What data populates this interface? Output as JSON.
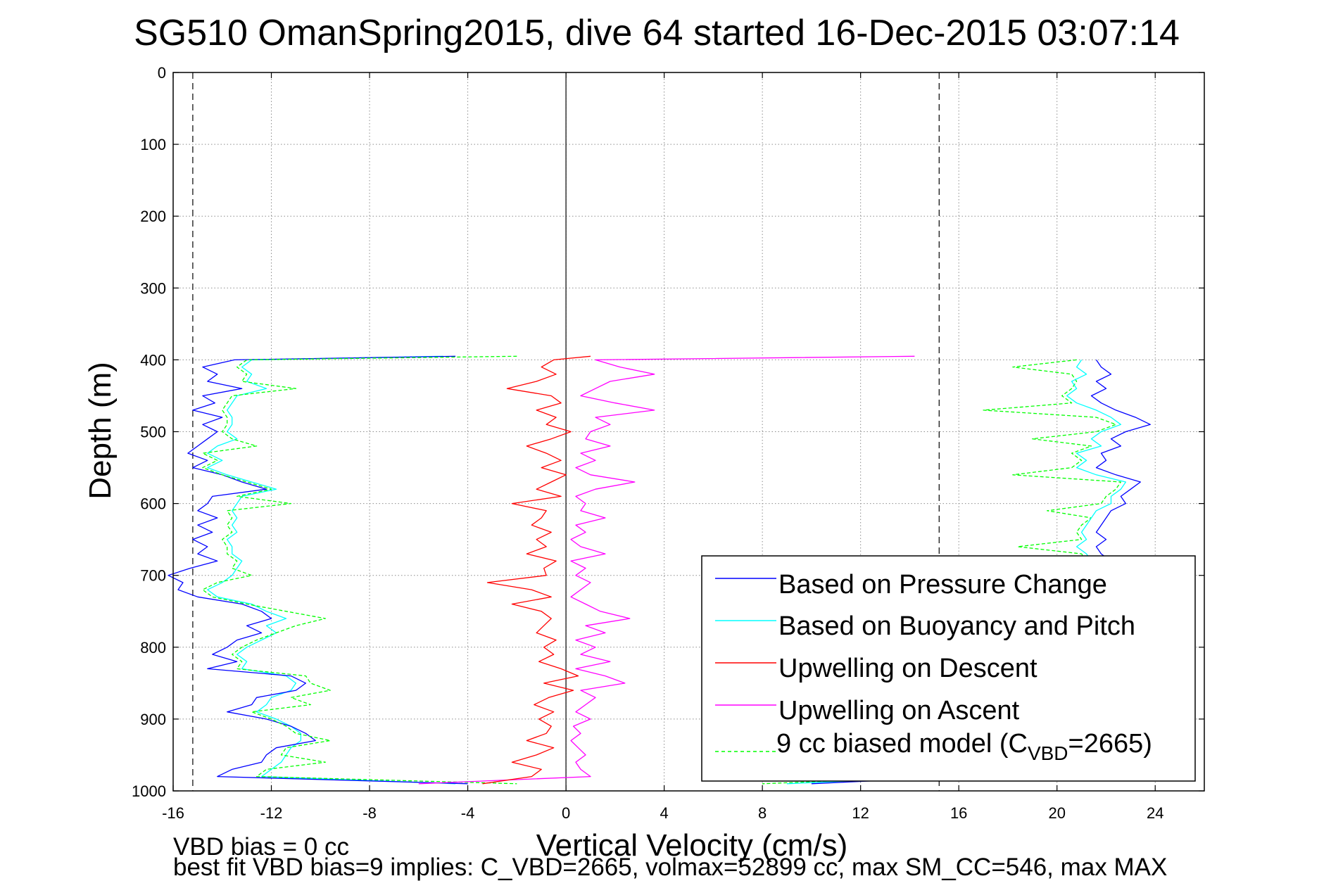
{
  "chart_data": {
    "type": "line",
    "title": "SG510 OmanSpring2015, dive 64 started 16-Dec-2015 03:07:14",
    "xlabel": "Vertical Velocity (cm/s)",
    "ylabel": "Depth (m)",
    "xlim": [
      -16,
      26
    ],
    "ylim": [
      1000,
      0
    ],
    "y_reversed": true,
    "grid": true,
    "x_ticks": [
      -16,
      -12,
      -8,
      -4,
      0,
      4,
      8,
      12,
      16,
      20,
      24
    ],
    "y_ticks": [
      0,
      100,
      200,
      300,
      400,
      500,
      600,
      700,
      800,
      900,
      1000
    ],
    "vertical_reference_lines": [
      {
        "x": -15.2,
        "style": "dashed"
      },
      {
        "x": 0,
        "style": "solid"
      },
      {
        "x": 15.2,
        "style": "dashed"
      }
    ],
    "legend": {
      "placement": "bottom-right",
      "entries": [
        {
          "name": "Based on Pressure Change",
          "color": "#0000ff",
          "style": "solid"
        },
        {
          "name": "Based on Buoyancy and Pitch",
          "color": "#00ffff",
          "style": "solid"
        },
        {
          "name": "Upwelling on Descent",
          "color": "#ff0000",
          "style": "solid"
        },
        {
          "name": "Upwelling on Ascent",
          "color": "#ff00ff",
          "style": "solid"
        },
        {
          "name_main": "9 cc biased model (C",
          "name_sub": "VBD",
          "name_end": "=2665)",
          "color": "#00ff00",
          "style": "dashed"
        }
      ]
    },
    "annotations": [
      "VBD bias = 0 cc",
      "best fit VBD bias=9 implies: C_VBD=2665, volmax=52899 cc, max SM_CC=546, max MAX"
    ],
    "series": [
      {
        "name": "Based on Pressure Change",
        "color": "#0000ff",
        "depth": [
          395,
          400,
          410,
          420,
          430,
          440,
          450,
          460,
          470,
          480,
          490,
          500,
          510,
          520,
          530,
          540,
          550,
          560,
          570,
          580,
          590,
          600,
          610,
          620,
          630,
          640,
          650,
          660,
          670,
          680,
          690,
          700,
          710,
          720,
          730,
          740,
          750,
          760,
          770,
          780,
          790,
          800,
          810,
          820,
          830,
          840,
          850,
          860,
          870,
          880,
          890,
          900,
          910,
          920,
          930,
          940,
          950,
          960,
          970,
          980,
          990
        ],
        "x": [
          -4.5,
          -13.5,
          -14.8,
          -14.2,
          -14.6,
          -13.2,
          -14.8,
          -14.3,
          -15.2,
          -14.0,
          -14.8,
          -14.2,
          -14.6,
          -15.0,
          -15.4,
          -14.6,
          -15.2,
          -14.0,
          -13.2,
          -12.2,
          -14.4,
          -14.6,
          -15.0,
          -14.2,
          -15.0,
          -14.4,
          -15.2,
          -14.6,
          -15.0,
          -14.2,
          -15.3,
          -16.2,
          -15.6,
          -15.8,
          -15.0,
          -13.2,
          -12.4,
          -12.0,
          -13.0,
          -12.4,
          -13.4,
          -13.8,
          -14.4,
          -13.4,
          -14.6,
          -11.2,
          -10.6,
          -11.0,
          -12.6,
          -12.8,
          -13.8,
          -12.2,
          -11.2,
          -10.6,
          -10.2,
          -11.8,
          -12.2,
          -12.4,
          -13.6,
          -14.2,
          -4.0
        ]
      },
      {
        "name": "Based on Buoyancy and Pitch",
        "color": "#00ffff",
        "depth": [
          395,
          400,
          410,
          420,
          430,
          440,
          450,
          460,
          470,
          480,
          490,
          500,
          510,
          520,
          530,
          540,
          550,
          560,
          570,
          580,
          590,
          600,
          610,
          620,
          630,
          640,
          650,
          660,
          670,
          680,
          690,
          700,
          710,
          720,
          730,
          740,
          750,
          760,
          770,
          780,
          790,
          800,
          810,
          820,
          830,
          840,
          850,
          860,
          870,
          880,
          890,
          900,
          910,
          920,
          930,
          940,
          950,
          960,
          970,
          980,
          990
        ],
        "x": [
          -5.0,
          -12.8,
          -13.2,
          -12.8,
          -13.0,
          -12.2,
          -13.4,
          -13.6,
          -13.8,
          -13.6,
          -13.6,
          -13.8,
          -13.4,
          -14.2,
          -14.6,
          -14.0,
          -14.6,
          -13.8,
          -12.8,
          -11.8,
          -13.2,
          -13.4,
          -13.6,
          -13.4,
          -13.6,
          -13.4,
          -13.8,
          -13.6,
          -13.6,
          -13.2,
          -13.4,
          -13.6,
          -14.0,
          -14.6,
          -14.2,
          -12.8,
          -12.2,
          -11.4,
          -12.2,
          -11.8,
          -12.4,
          -13.0,
          -13.4,
          -13.0,
          -13.2,
          -11.4,
          -11.0,
          -11.2,
          -12.0,
          -12.2,
          -12.6,
          -11.8,
          -11.2,
          -10.8,
          -10.8,
          -11.2,
          -11.4,
          -11.6,
          -12.0,
          -12.4,
          -4.5
        ]
      },
      {
        "name": "Upwelling on Descent",
        "color": "#ff0000",
        "depth": [
          395,
          400,
          410,
          420,
          430,
          440,
          450,
          460,
          470,
          480,
          490,
          500,
          510,
          520,
          530,
          540,
          550,
          560,
          570,
          580,
          590,
          600,
          610,
          620,
          630,
          640,
          650,
          660,
          670,
          680,
          690,
          700,
          710,
          720,
          730,
          740,
          750,
          760,
          770,
          780,
          790,
          800,
          810,
          820,
          830,
          840,
          850,
          860,
          870,
          880,
          890,
          900,
          910,
          920,
          930,
          940,
          950,
          960,
          970,
          980,
          990
        ],
        "x": [
          1.0,
          -0.5,
          -1.0,
          -0.4,
          -1.2,
          -2.4,
          -0.6,
          -0.2,
          -1.2,
          -0.4,
          -0.8,
          0.2,
          -0.6,
          -1.6,
          -0.8,
          -0.2,
          -1.0,
          0.0,
          -0.6,
          -1.2,
          -0.2,
          -2.2,
          -0.8,
          -1.0,
          -1.4,
          -0.6,
          -1.2,
          -0.8,
          -1.6,
          -0.4,
          -0.9,
          -0.8,
          -3.2,
          -1.4,
          -0.6,
          -2.2,
          -1.0,
          -0.6,
          -0.9,
          -1.2,
          -0.4,
          -0.9,
          -0.5,
          -1.1,
          -0.2,
          0.5,
          -0.9,
          0.3,
          -0.7,
          -1.3,
          -0.5,
          -1.1,
          -0.6,
          -0.8,
          -1.6,
          -0.5,
          -1.2,
          -2.2,
          -1.0,
          -1.4,
          -3.4
        ]
      },
      {
        "name": "Upwelling on Ascent",
        "color": "#ff00ff",
        "depth": [
          395,
          400,
          410,
          420,
          430,
          440,
          450,
          460,
          470,
          480,
          490,
          500,
          510,
          520,
          530,
          540,
          550,
          560,
          570,
          580,
          590,
          600,
          610,
          620,
          630,
          640,
          650,
          660,
          670,
          680,
          690,
          700,
          710,
          720,
          730,
          740,
          750,
          760,
          770,
          780,
          790,
          800,
          810,
          820,
          830,
          840,
          850,
          860,
          870,
          880,
          890,
          900,
          910,
          920,
          930,
          940,
          950,
          960,
          970,
          980,
          990
        ],
        "x": [
          14.2,
          1.2,
          2.2,
          3.6,
          1.8,
          1.2,
          0.6,
          2.0,
          3.6,
          1.2,
          1.8,
          1.0,
          0.8,
          1.8,
          0.6,
          1.2,
          0.4,
          1.0,
          2.8,
          1.2,
          0.4,
          0.8,
          0.6,
          1.6,
          0.4,
          0.8,
          0.2,
          0.6,
          1.6,
          0.2,
          0.8,
          0.4,
          1.0,
          0.6,
          0.2,
          0.8,
          1.4,
          2.6,
          0.8,
          1.6,
          0.4,
          1.2,
          0.6,
          1.8,
          0.4,
          1.6,
          2.4,
          0.6,
          1.2,
          0.8,
          0.4,
          1.0,
          0.3,
          0.6,
          0.2,
          0.5,
          0.8,
          0.4,
          0.6,
          1.0,
          -6.0
        ]
      },
      {
        "name": "9 cc biased model (CVBD=2665)",
        "color": "#00ff00",
        "depth": [
          395,
          400,
          410,
          420,
          430,
          440,
          450,
          460,
          470,
          480,
          490,
          500,
          510,
          520,
          530,
          540,
          550,
          560,
          570,
          580,
          590,
          600,
          610,
          620,
          630,
          640,
          650,
          660,
          670,
          680,
          690,
          700,
          710,
          720,
          730,
          740,
          750,
          760,
          770,
          780,
          790,
          800,
          810,
          820,
          830,
          840,
          850,
          860,
          870,
          880,
          890,
          900,
          910,
          920,
          930,
          940,
          950,
          960,
          970,
          980,
          990
        ],
        "x": [
          -2.0,
          -13.0,
          -13.4,
          -13.0,
          -13.2,
          -11.0,
          -13.6,
          -13.8,
          -14.0,
          -13.8,
          -13.8,
          -14.0,
          -13.6,
          -12.6,
          -14.8,
          -14.2,
          -14.8,
          -14.0,
          -13.0,
          -12.0,
          -13.4,
          -11.2,
          -13.8,
          -13.6,
          -13.8,
          -13.6,
          -14.0,
          -13.8,
          -13.8,
          -13.4,
          -13.6,
          -12.8,
          -14.2,
          -14.8,
          -14.4,
          -13.0,
          -11.4,
          -9.8,
          -11.0,
          -11.8,
          -12.6,
          -13.2,
          -13.6,
          -13.2,
          -13.4,
          -10.6,
          -10.4,
          -9.6,
          -11.2,
          -10.4,
          -12.8,
          -12.0,
          -11.4,
          -11.0,
          -9.6,
          -11.4,
          -11.6,
          -9.8,
          -12.2,
          -12.6,
          -2.0
        ]
      },
      {
        "name": "Based on Pressure Change (ascent)",
        "color": "#0000ff",
        "depth": [
          400,
          410,
          420,
          430,
          440,
          450,
          460,
          470,
          480,
          490,
          500,
          510,
          520,
          530,
          540,
          550,
          560,
          570,
          580,
          590,
          600,
          610,
          620,
          630,
          640,
          650,
          660,
          670,
          680,
          690,
          700,
          710,
          720,
          730,
          740,
          750,
          760,
          770,
          780,
          790,
          800,
          810,
          820,
          830,
          840,
          850,
          860,
          870,
          880,
          890,
          900,
          910,
          920,
          930,
          940,
          950,
          960,
          970,
          980,
          990
        ],
        "x": [
          21.6,
          21.8,
          22.2,
          21.6,
          22.0,
          21.4,
          21.8,
          22.4,
          23.2,
          23.8,
          22.8,
          22.2,
          22.6,
          21.8,
          22.0,
          21.6,
          22.4,
          23.4,
          23.0,
          22.6,
          22.8,
          22.2,
          22.0,
          21.8,
          21.6,
          22.0,
          21.6,
          21.8,
          22.2,
          21.6,
          21.0,
          20.6,
          20.4,
          20.8,
          20.2,
          20.6,
          20.4,
          20.8,
          20.2,
          20.6,
          20.0,
          20.4,
          20.2,
          20.6,
          20.0,
          20.4,
          20.2,
          20.6,
          20.0,
          19.8,
          19.6,
          19.4,
          19.2,
          18.8,
          18.4,
          18.0,
          17.4,
          16.8,
          16.2,
          10.0
        ]
      },
      {
        "name": "Based on Buoyancy and Pitch (ascent)",
        "color": "#00ffff",
        "depth": [
          400,
          410,
          420,
          430,
          440,
          450,
          460,
          470,
          480,
          490,
          500,
          510,
          520,
          530,
          540,
          550,
          560,
          570,
          580,
          590,
          600,
          610,
          620,
          630,
          640,
          650,
          660,
          670,
          680,
          690,
          700,
          710,
          720,
          730,
          740,
          750,
          760,
          770,
          780,
          790,
          800,
          810,
          820,
          830,
          840,
          850,
          860,
          870,
          880,
          890,
          900,
          910,
          920,
          930,
          940,
          950,
          960,
          970,
          980,
          990
        ],
        "x": [
          21.0,
          20.8,
          21.2,
          20.6,
          20.8,
          20.4,
          20.8,
          21.6,
          22.2,
          22.6,
          21.8,
          21.4,
          21.8,
          20.8,
          21.2,
          20.8,
          21.6,
          22.8,
          22.6,
          22.2,
          22.2,
          21.6,
          21.4,
          21.2,
          21.0,
          21.2,
          20.8,
          21.2,
          21.4,
          20.8,
          20.4,
          20.0,
          19.8,
          20.2,
          19.8,
          20.0,
          19.8,
          20.2,
          19.6,
          20.0,
          19.4,
          19.8,
          19.6,
          20.0,
          19.4,
          19.8,
          19.6,
          20.0,
          19.4,
          19.2,
          19.0,
          18.8,
          18.6,
          18.2,
          17.8,
          17.4,
          16.8,
          16.2,
          15.6,
          9.0
        ]
      },
      {
        "name": "9 cc biased model (ascent)",
        "color": "#00ff00",
        "depth": [
          400,
          410,
          420,
          430,
          440,
          450,
          460,
          470,
          480,
          490,
          500,
          510,
          520,
          530,
          540,
          550,
          560,
          570,
          580,
          590,
          600,
          610,
          620,
          630,
          640,
          650,
          660,
          670,
          680,
          690,
          700,
          710,
          720,
          730,
          740,
          750,
          760,
          770,
          780,
          790,
          800,
          810,
          820,
          830,
          840,
          850,
          860,
          870,
          880,
          890,
          900,
          910,
          920,
          930,
          940,
          950,
          960,
          970,
          980,
          990
        ],
        "x": [
          20.8,
          18.2,
          20.6,
          20.8,
          20.6,
          20.2,
          20.6,
          17.0,
          21.6,
          22.4,
          21.6,
          19.0,
          21.4,
          20.6,
          21.0,
          20.6,
          18.2,
          22.6,
          22.4,
          22.0,
          21.8,
          19.6,
          21.4,
          21.0,
          20.8,
          21.0,
          18.4,
          21.0,
          21.2,
          20.6,
          20.2,
          19.8,
          19.6,
          20.0,
          19.6,
          19.8,
          19.6,
          20.0,
          19.4,
          19.8,
          19.2,
          19.6,
          19.4,
          19.8,
          19.2,
          19.6,
          19.4,
          19.8,
          19.2,
          19.0,
          18.8,
          18.6,
          18.4,
          18.0,
          17.6,
          17.2,
          16.6,
          16.0,
          15.4,
          8.0
        ]
      }
    ]
  }
}
